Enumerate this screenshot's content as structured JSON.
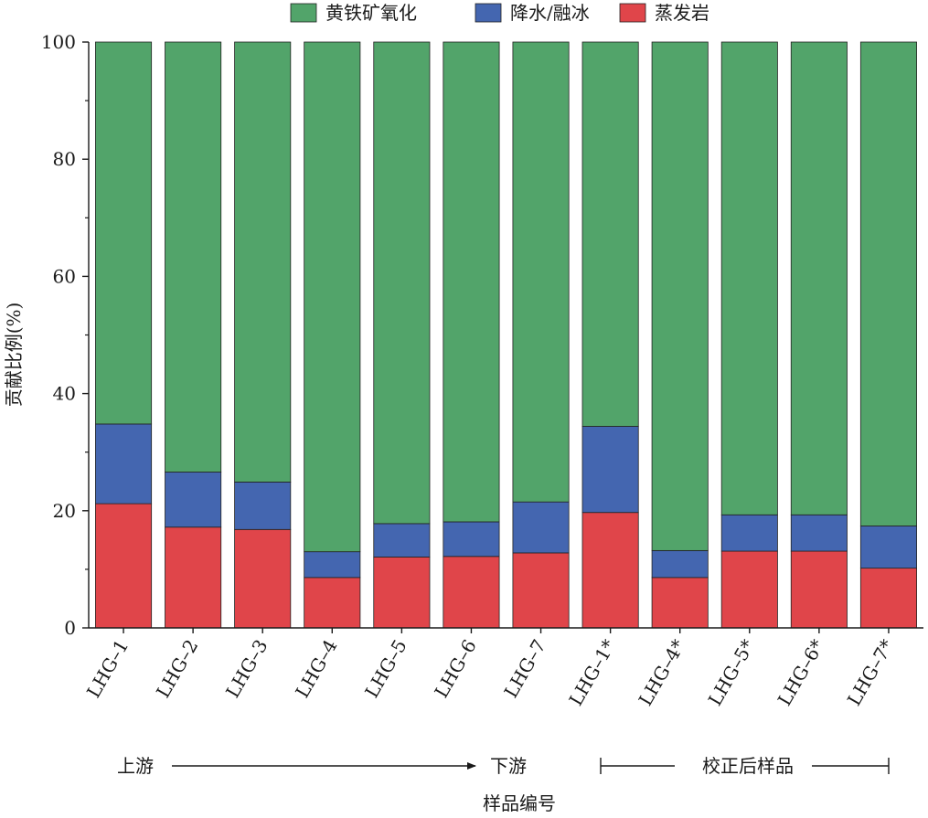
{
  "chart_data": {
    "type": "bar",
    "stacked": true,
    "title": "",
    "xlabel": "样品编号",
    "ylabel": "贡献比例(%)",
    "ylim": [
      0,
      100
    ],
    "yticks": [
      0,
      20,
      40,
      60,
      80,
      100
    ],
    "grid": false,
    "legend_position": "top",
    "categories": [
      "LHG–1",
      "LHG–2",
      "LHG–3",
      "LHG–4",
      "LHG–5",
      "LHG–6",
      "LHG–7",
      "LHG–1*",
      "LHG–4*",
      "LHG–5*",
      "LHG–6*",
      "LHG–7*"
    ],
    "series": [
      {
        "name": "蒸发岩",
        "color": "#e0454a",
        "values": [
          21.2,
          17.2,
          16.8,
          8.6,
          12.1,
          12.2,
          12.8,
          19.7,
          8.6,
          13.1,
          13.1,
          10.2
        ]
      },
      {
        "name": "降水/融冰",
        "color": "#4466b0",
        "values": [
          13.6,
          9.4,
          8.1,
          4.4,
          5.7,
          5.9,
          8.7,
          14.7,
          4.6,
          6.2,
          6.2,
          7.2
        ]
      },
      {
        "name": "黄铁矿氧化",
        "color": "#52a46a",
        "values": [
          65.2,
          73.4,
          75.1,
          87.0,
          82.2,
          81.9,
          78.5,
          65.6,
          86.8,
          80.7,
          80.7,
          82.6
        ]
      }
    ],
    "legend_order": [
      "黄铁矿氧化",
      "降水/融冰",
      "蒸发岩"
    ],
    "annotations": {
      "upstream": "上游",
      "downstream": "下游",
      "corrected": "校正后样品"
    }
  }
}
